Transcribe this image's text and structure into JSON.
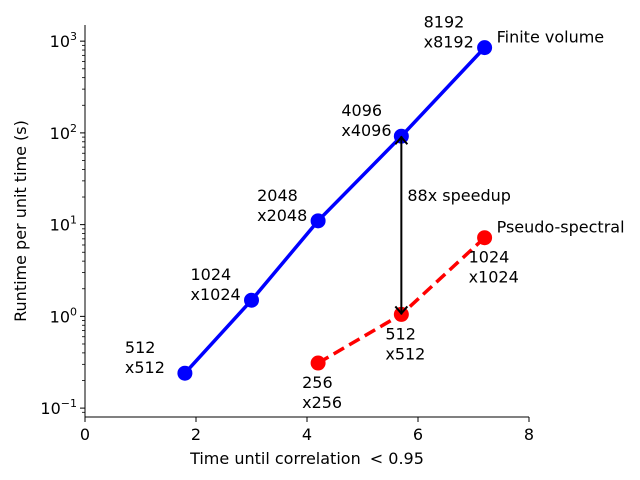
{
  "chart_data": {
    "type": "line",
    "title": "",
    "xlabel": "Time until correlation $< 0.95$",
    "xlabel_main": "Time until correlation ",
    "xlabel_lt": "< 0.95",
    "ylabel": "Runtime per unit time (s)",
    "xlim": [
      0,
      8
    ],
    "ylim": [
      0.08,
      1500
    ],
    "yscale": "log",
    "grid": false,
    "x_ticks": [
      {
        "value": 0,
        "label": "0"
      },
      {
        "value": 2,
        "label": "2"
      },
      {
        "value": 4,
        "label": "4"
      },
      {
        "value": 6,
        "label": "6"
      },
      {
        "value": 8,
        "label": "8"
      }
    ],
    "y_ticks": [
      {
        "value": 0.1,
        "base": "10",
        "exp": "−1"
      },
      {
        "value": 1,
        "base": "10",
        "exp": "0"
      },
      {
        "value": 10,
        "base": "10",
        "exp": "1"
      },
      {
        "value": 100,
        "base": "10",
        "exp": "2"
      },
      {
        "value": 1000,
        "base": "10",
        "exp": "3"
      }
    ],
    "series": [
      {
        "name": "Finite volume",
        "color": "#0000ff",
        "linestyle": "solid",
        "points": [
          {
            "x": 1.8,
            "y": 0.24,
            "label": [
              "512",
              "x512"
            ]
          },
          {
            "x": 3.0,
            "y": 1.5,
            "label": [
              "1024",
              "x1024"
            ]
          },
          {
            "x": 4.2,
            "y": 11,
            "label": [
              "2048",
              "x2048"
            ]
          },
          {
            "x": 5.7,
            "y": 92,
            "label": [
              "4096",
              "x4096"
            ]
          },
          {
            "x": 7.2,
            "y": 850,
            "label": [
              "8192",
              "x8192"
            ]
          }
        ]
      },
      {
        "name": "Pseudo-spectral",
        "color": "#ff0000",
        "linestyle": "dashed",
        "points": [
          {
            "x": 4.2,
            "y": 0.31,
            "label": [
              "256",
              "x256"
            ]
          },
          {
            "x": 5.7,
            "y": 1.05,
            "label": [
              "512",
              "x512"
            ]
          },
          {
            "x": 7.2,
            "y": 7.2,
            "label": [
              "1024",
              "x1024"
            ]
          }
        ]
      }
    ],
    "annotations": [
      {
        "text": "88x speedup",
        "x_from": 5.7,
        "y_from": 92,
        "x_to": 5.7,
        "y_to": 1.05
      }
    ]
  }
}
